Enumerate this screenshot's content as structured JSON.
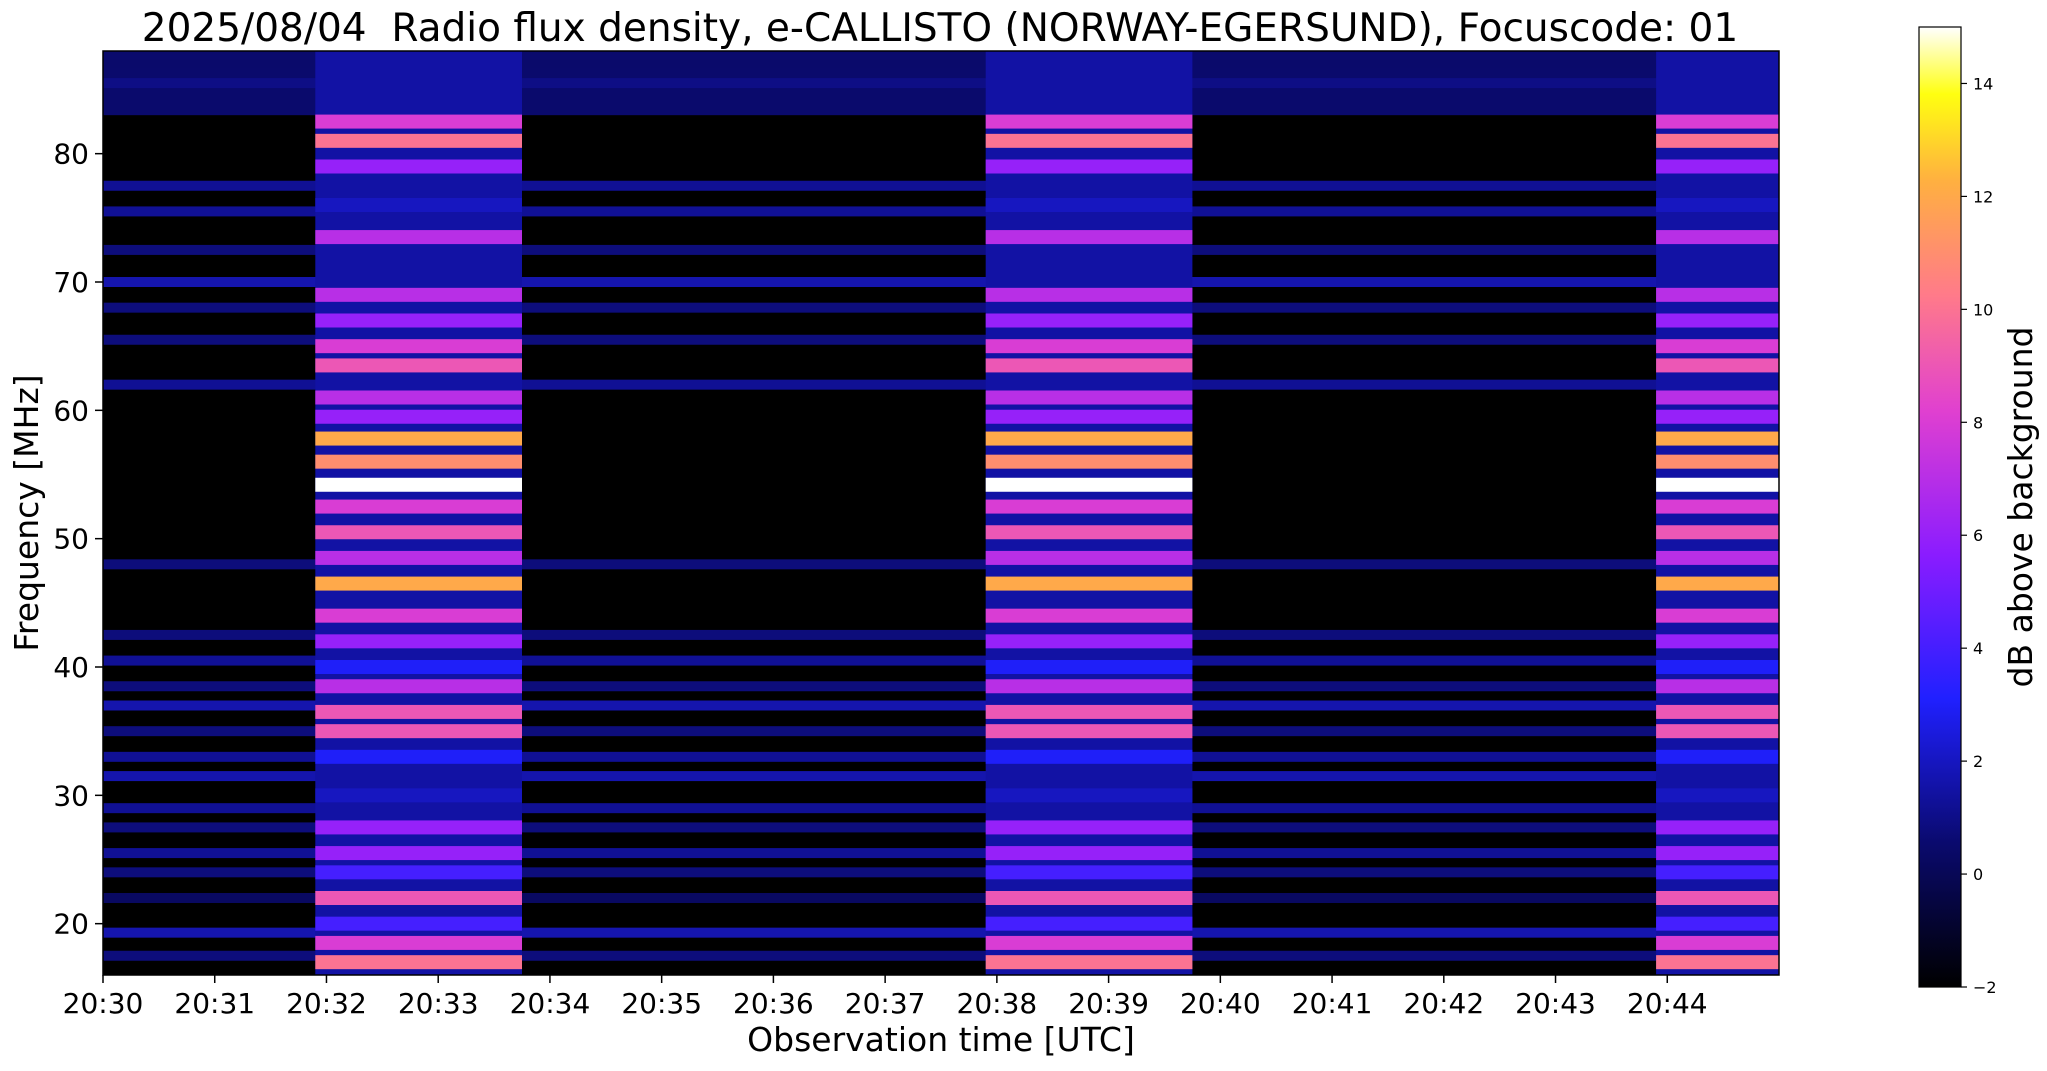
{
  "figure": {
    "title": "2025/08/04  Radio flux density, e-CALLISTO (NORWAY-EGERSUND), Focuscode: 01"
  },
  "chart_data": {
    "type": "heatmap",
    "title": "2025/08/04  Radio flux density, e-CALLISTO (NORWAY-EGERSUND), Focuscode: 01",
    "xlabel": "Observation time [UTC]",
    "ylabel": "Frequency [MHz]",
    "colorbar_label": "dB above background",
    "colormap": "gnuplot2",
    "x_range": [
      "20:30:00",
      "20:45:00"
    ],
    "y_range": [
      16,
      88
    ],
    "value_range": [
      -2,
      15
    ],
    "x_ticks": [
      "20:30",
      "20:31",
      "20:32",
      "20:33",
      "20:34",
      "20:35",
      "20:36",
      "20:37",
      "20:38",
      "20:39",
      "20:40",
      "20:41",
      "20:42",
      "20:43",
      "20:44"
    ],
    "y_ticks": [
      20,
      30,
      40,
      50,
      60,
      70,
      80
    ],
    "colorbar_ticks": [
      -2,
      0,
      2,
      4,
      6,
      8,
      10,
      12,
      14
    ],
    "bursts": [
      {
        "start": "20:31:54",
        "end": "20:33:45"
      },
      {
        "start": "20:37:54",
        "end": "20:39:45"
      },
      {
        "start": "20:43:54",
        "end": "20:45:00"
      }
    ],
    "burst_bands": [
      {
        "mhz": 17,
        "db": 10
      },
      {
        "mhz": 18.5,
        "db": 8
      },
      {
        "mhz": 20,
        "db": 4
      },
      {
        "mhz": 22,
        "db": 9
      },
      {
        "mhz": 24,
        "db": 4
      },
      {
        "mhz": 25.5,
        "db": 6
      },
      {
        "mhz": 27.5,
        "db": 6
      },
      {
        "mhz": 30,
        "db": 2
      },
      {
        "mhz": 33,
        "db": 3
      },
      {
        "mhz": 35,
        "db": 9
      },
      {
        "mhz": 36.5,
        "db": 9
      },
      {
        "mhz": 38.5,
        "db": 7
      },
      {
        "mhz": 40,
        "db": 3
      },
      {
        "mhz": 42,
        "db": 6
      },
      {
        "mhz": 44,
        "db": 8
      },
      {
        "mhz": 46.5,
        "db": 12
      },
      {
        "mhz": 48.5,
        "db": 7
      },
      {
        "mhz": 50.5,
        "db": 9
      },
      {
        "mhz": 52.5,
        "db": 8
      },
      {
        "mhz": 54.2,
        "db": 15
      },
      {
        "mhz": 56,
        "db": 11
      },
      {
        "mhz": 57.8,
        "db": 12
      },
      {
        "mhz": 59.5,
        "db": 6
      },
      {
        "mhz": 61,
        "db": 7
      },
      {
        "mhz": 63.5,
        "db": 9
      },
      {
        "mhz": 65,
        "db": 8
      },
      {
        "mhz": 67,
        "db": 6
      },
      {
        "mhz": 69,
        "db": 7
      },
      {
        "mhz": 73.5,
        "db": 7
      },
      {
        "mhz": 76,
        "db": 2
      },
      {
        "mhz": 79,
        "db": 6
      },
      {
        "mhz": 81,
        "db": 10
      },
      {
        "mhz": 82.5,
        "db": 8
      }
    ],
    "background_bands": [
      {
        "mhz": 17.5,
        "db": 1
      },
      {
        "mhz": 19.3,
        "db": 2
      },
      {
        "mhz": 22,
        "db": 0.5
      },
      {
        "mhz": 24,
        "db": 1
      },
      {
        "mhz": 25.5,
        "db": 1.5
      },
      {
        "mhz": 27.5,
        "db": 1
      },
      {
        "mhz": 29,
        "db": 1.5
      },
      {
        "mhz": 31.5,
        "db": 2
      },
      {
        "mhz": 33,
        "db": 1.5
      },
      {
        "mhz": 35,
        "db": 1
      },
      {
        "mhz": 37,
        "db": 2
      },
      {
        "mhz": 38.5,
        "db": 1
      },
      {
        "mhz": 40.5,
        "db": 1.5
      },
      {
        "mhz": 42.5,
        "db": 1
      },
      {
        "mhz": 48,
        "db": 1
      },
      {
        "mhz": 62,
        "db": 1.5
      },
      {
        "mhz": 65.5,
        "db": 1
      },
      {
        "mhz": 68,
        "db": 1
      },
      {
        "mhz": 70,
        "db": 2
      },
      {
        "mhz": 72.5,
        "db": 1
      },
      {
        "mhz": 75.5,
        "db": 1.5
      },
      {
        "mhz": 77.5,
        "db": 1.5
      },
      {
        "mhz": 85.5,
        "db": 1
      },
      {
        "mhz": 87,
        "db": 0.5
      }
    ]
  }
}
